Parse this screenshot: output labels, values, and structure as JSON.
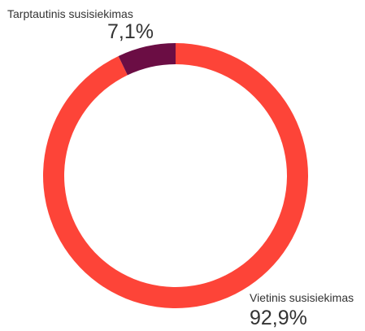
{
  "chart_data": {
    "type": "pie",
    "variant": "donut",
    "slices": [
      {
        "label": "Vietinis susisiekimas",
        "value": 92.9,
        "value_label": "92,9%",
        "color": "#fd4438"
      },
      {
        "label": "Tarptautinis susisiekimas",
        "value": 7.1,
        "value_label": "7,1%",
        "color": "#6b0d44"
      }
    ],
    "legend": "none",
    "start_angle_deg": 0,
    "direction": "clockwise"
  }
}
